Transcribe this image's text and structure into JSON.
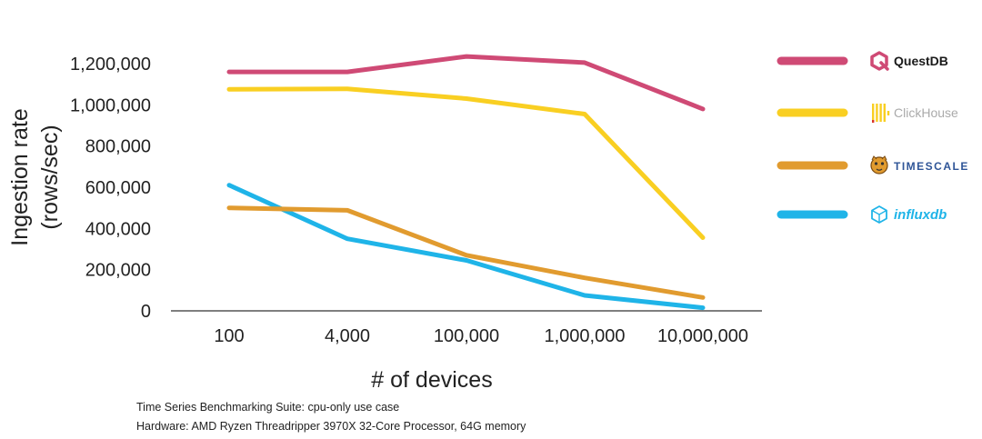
{
  "chart_data": {
    "type": "line",
    "title": "",
    "xlabel": "# of devices",
    "ylabel_lines": [
      "Ingestion rate",
      "(rows/sec)"
    ],
    "categories": [
      "100",
      "4,000",
      "100,000",
      "1,000,000",
      "10,000,000"
    ],
    "ylim": [
      0,
      1200000
    ],
    "yticks": [
      0,
      200000,
      400000,
      600000,
      800000,
      1000000,
      1200000
    ],
    "ytick_labels": [
      "0",
      "200,000",
      "400,000",
      "600,000",
      "800,000",
      "1,000,000",
      "1,200,000"
    ],
    "grid": false,
    "legend_position": "right",
    "series": [
      {
        "name": "QuestDB",
        "color": "#CF4A75",
        "text_color": "#1a1a1a",
        "icon": "questdb-logo-icon",
        "values": [
          1160000,
          1160000,
          1235000,
          1205000,
          980000
        ]
      },
      {
        "name": "ClickHouse",
        "color": "#F9CF22",
        "text_color": "#aaaaaa",
        "icon": "clickhouse-logo-icon",
        "values": [
          1075000,
          1078000,
          1030000,
          955000,
          355000
        ]
      },
      {
        "name": "TIMESCALE",
        "color": "#E19B2F",
        "text_color": "#2f5597",
        "icon": "timescale-tiger-icon",
        "values": [
          500000,
          488000,
          270000,
          160000,
          65000
        ]
      },
      {
        "name": "influxdb",
        "color": "#1FB4E8",
        "text_color": "#1FB4E8",
        "icon": "influxdb-cube-icon",
        "values": [
          610000,
          350000,
          245000,
          75000,
          15000
        ]
      }
    ]
  },
  "notes": {
    "line1": "Time Series Benchmarking Suite: cpu-only use case",
    "line2": "Hardware: AMD Ryzen Threadripper 3970X 32-Core Processor, 64G memory"
  }
}
